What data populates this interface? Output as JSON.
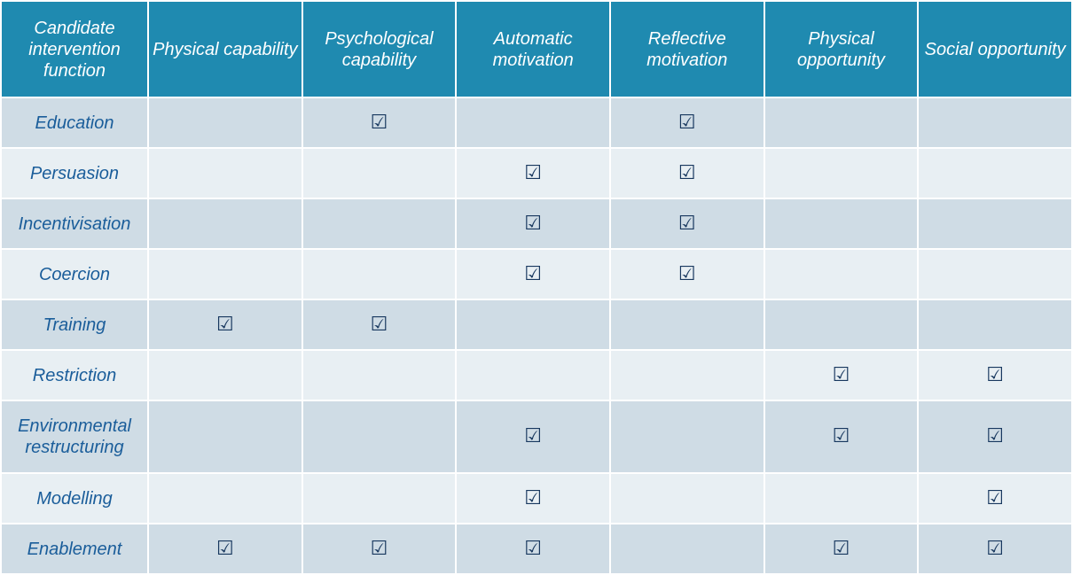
{
  "check_glyph": "☑",
  "colors": {
    "header_bg": "#1f8ab0",
    "row_dark": "#cfdce5",
    "row_light": "#e8eff3",
    "label_text": "#1a5d9a",
    "check": "#17375e"
  },
  "table": {
    "header": {
      "corner": "Candidate intervention function",
      "columns": [
        "Physical capability",
        "Psychological capability",
        "Automatic motivation",
        "Reflective motivation",
        "Physical opportunity",
        "Social opportunity"
      ]
    },
    "rows": [
      {
        "label": "Education",
        "checks": [
          false,
          true,
          false,
          true,
          false,
          false
        ]
      },
      {
        "label": "Persuasion",
        "checks": [
          false,
          false,
          true,
          true,
          false,
          false
        ]
      },
      {
        "label": "Incentivisation",
        "checks": [
          false,
          false,
          true,
          true,
          false,
          false
        ]
      },
      {
        "label": "Coercion",
        "checks": [
          false,
          false,
          true,
          true,
          false,
          false
        ]
      },
      {
        "label": "Training",
        "checks": [
          true,
          true,
          false,
          false,
          false,
          false
        ]
      },
      {
        "label": "Restriction",
        "checks": [
          false,
          false,
          false,
          false,
          true,
          true
        ]
      },
      {
        "label": "Environmental restructuring",
        "checks": [
          false,
          false,
          true,
          false,
          true,
          true
        ]
      },
      {
        "label": "Modelling",
        "checks": [
          false,
          false,
          true,
          false,
          false,
          true
        ]
      },
      {
        "label": "Enablement",
        "checks": [
          true,
          true,
          true,
          false,
          true,
          true
        ]
      }
    ]
  }
}
